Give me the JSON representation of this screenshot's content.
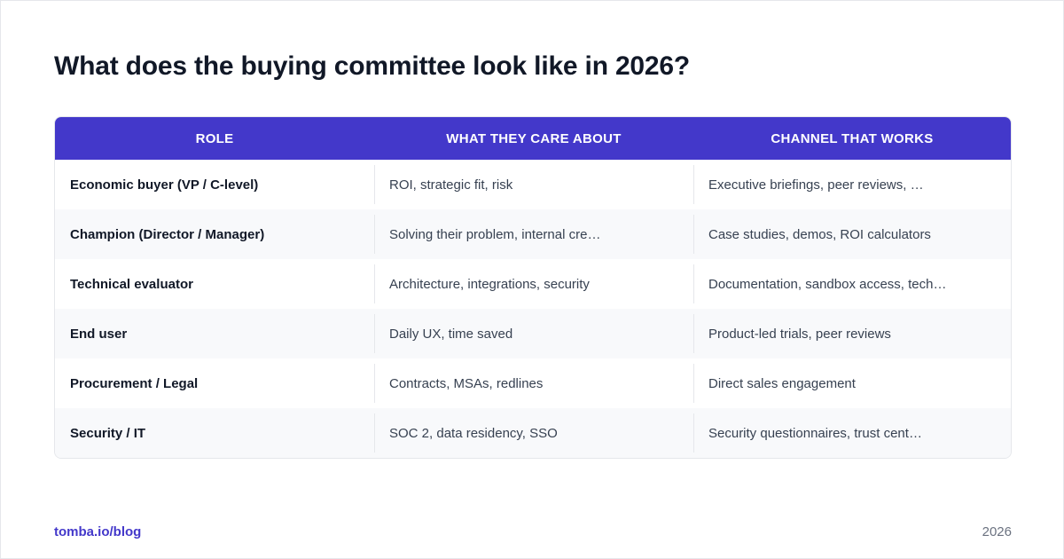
{
  "title": "What does the buying committee look like in 2026?",
  "table": {
    "headers": [
      "ROLE",
      "WHAT THEY CARE ABOUT",
      "CHANNEL THAT WORKS"
    ],
    "rows": [
      [
        "Economic buyer (VP / C-level)",
        "ROI, strategic fit, risk",
        "Executive briefings, peer reviews, …"
      ],
      [
        "Champion (Director / Manager)",
        "Solving their problem, internal cre…",
        "Case studies, demos, ROI calculators"
      ],
      [
        "Technical evaluator",
        "Architecture, integrations, security",
        "Documentation, sandbox access, tech…"
      ],
      [
        "End user",
        "Daily UX, time saved",
        "Product-led trials, peer reviews"
      ],
      [
        "Procurement / Legal",
        "Contracts, MSAs, redlines",
        "Direct sales engagement"
      ],
      [
        "Security / IT",
        "SOC 2, data residency, SSO",
        "Security questionnaires, trust cent…"
      ]
    ]
  },
  "footer": {
    "link": "tomba.io/blog",
    "year": "2026"
  },
  "colors": {
    "header_bg": "#4338ca",
    "accent": "#4338ca",
    "title": "#111827",
    "row_alt": "#f8f9fb"
  }
}
